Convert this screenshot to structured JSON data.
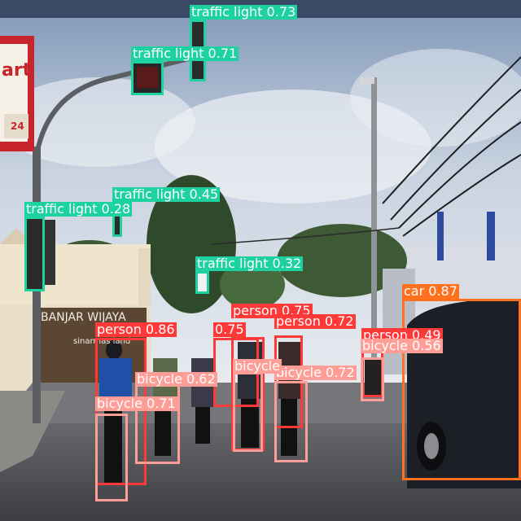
{
  "image": {
    "signage": {
      "banner_top": "BANJAR WIJAYA",
      "banner_sub": "sinarmas land",
      "store_sign": "art",
      "store_hours": "24"
    }
  },
  "colors": {
    "traffic_light": "#1dd1a1",
    "person": "#ff3838",
    "bicycle": "#ff9d97",
    "car": "#ff701f"
  },
  "detections": [
    {
      "label": "traffic light 0.73",
      "cls": "traffic_light"
    },
    {
      "label": "traffic light 0.71",
      "cls": "traffic_light"
    },
    {
      "label": "traffic light 0.45",
      "cls": "traffic_light"
    },
    {
      "label": "traffic light 0.28",
      "cls": "traffic_light"
    },
    {
      "label": "traffic light 0.32",
      "cls": "traffic_light"
    },
    {
      "label": "car 0.87",
      "cls": "car"
    },
    {
      "label": "person 0.75",
      "cls": "person"
    },
    {
      "label": "person 0.72",
      "cls": "person"
    },
    {
      "label": "person 0.86",
      "cls": "person"
    },
    {
      "label": "0.75",
      "cls": "person"
    },
    {
      "label": "person 0.49",
      "cls": "person"
    },
    {
      "label": "bicycle 0.56",
      "cls": "bicycle"
    },
    {
      "label": "bicycle 0.72",
      "cls": "bicycle"
    },
    {
      "label": "bicycle",
      "cls": "bicycle"
    },
    {
      "label": "bicycle 0.62",
      "cls": "bicycle"
    },
    {
      "label": "bicycle 0.71",
      "cls": "bicycle"
    }
  ]
}
